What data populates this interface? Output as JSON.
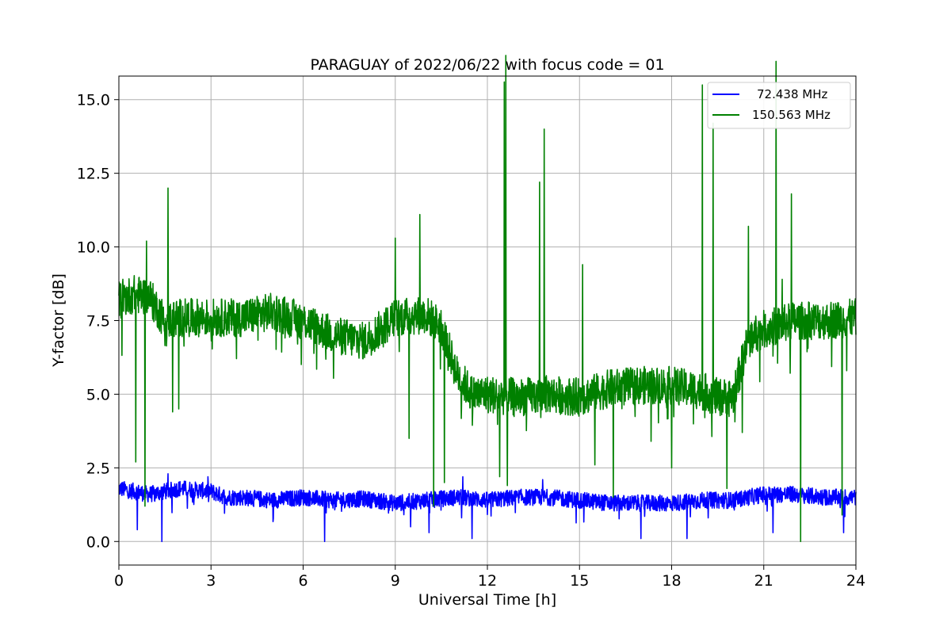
{
  "chart_data": {
    "type": "line",
    "title": "PARAGUAY of 2022/06/22 with focus code = 01",
    "xlabel": "Universal Time [h]",
    "ylabel": "Y-factor [dB]",
    "xlim": [
      0,
      24
    ],
    "ylim": [
      -0.8,
      15.8
    ],
    "x_ticks": [
      0,
      3,
      6,
      9,
      12,
      15,
      18,
      21,
      24
    ],
    "x_tick_labels": [
      "0",
      "3",
      "6",
      "9",
      "12",
      "15",
      "18",
      "21",
      "24"
    ],
    "y_ticks": [
      0.0,
      2.5,
      5.0,
      7.5,
      10.0,
      12.5,
      15.0
    ],
    "y_tick_labels": [
      "0.0",
      "2.5",
      "5.0",
      "7.5",
      "10.0",
      "12.5",
      "15.0"
    ],
    "grid": true,
    "legend_position": "top-right",
    "series": [
      {
        "name": "72.438 MHz",
        "color": "#0000ff",
        "x": [
          0,
          0.5,
          1.0,
          1.5,
          2.0,
          2.5,
          3.0,
          3.5,
          4.0,
          5.0,
          6.0,
          7.0,
          8.0,
          9.0,
          10.0,
          11.0,
          12.0,
          13.0,
          14.0,
          15.0,
          16.0,
          17.0,
          18.0,
          19.0,
          20.0,
          21.0,
          22.0,
          23.0,
          24.0
        ],
        "y": [
          1.8,
          1.7,
          1.6,
          1.7,
          1.8,
          1.75,
          1.7,
          1.5,
          1.5,
          1.4,
          1.5,
          1.4,
          1.45,
          1.3,
          1.4,
          1.5,
          1.4,
          1.5,
          1.5,
          1.4,
          1.3,
          1.3,
          1.3,
          1.4,
          1.4,
          1.6,
          1.6,
          1.5,
          1.5
        ],
        "spikes": [
          {
            "x": 0.6,
            "y": 0.4
          },
          {
            "x": 1.4,
            "y": 0.0
          },
          {
            "x": 1.6,
            "y": 2.3
          },
          {
            "x": 2.9,
            "y": 2.2
          },
          {
            "x": 6.7,
            "y": 0.0
          },
          {
            "x": 9.5,
            "y": 0.5
          },
          {
            "x": 10.1,
            "y": 0.3
          },
          {
            "x": 11.2,
            "y": 2.2
          },
          {
            "x": 11.5,
            "y": 0.1
          },
          {
            "x": 13.8,
            "y": 2.1
          },
          {
            "x": 17.0,
            "y": 0.1
          },
          {
            "x": 18.5,
            "y": 0.1
          },
          {
            "x": 21.3,
            "y": 0.3
          },
          {
            "x": 23.6,
            "y": 0.3
          }
        ]
      },
      {
        "name": "150.563 MHz",
        "color": "#008000",
        "x": [
          0,
          0.5,
          1.0,
          1.5,
          2.0,
          3.0,
          4.0,
          5.0,
          6.0,
          7.0,
          8.0,
          9.0,
          10.0,
          10.5,
          11.0,
          11.5,
          12.0,
          13.0,
          14.0,
          15.0,
          16.0,
          17.0,
          18.0,
          19.0,
          19.5,
          20.0,
          20.5,
          21.0,
          22.0,
          23.0,
          24.0
        ],
        "y": [
          8.2,
          8.4,
          8.3,
          7.5,
          7.6,
          7.6,
          7.6,
          7.8,
          7.5,
          7.0,
          6.8,
          7.6,
          7.7,
          7.3,
          5.7,
          5.0,
          5.0,
          4.9,
          5.0,
          4.9,
          5.2,
          5.3,
          5.3,
          5.1,
          4.9,
          4.9,
          6.9,
          7.2,
          7.5,
          7.5,
          7.6
        ],
        "spikes": [
          {
            "x": 0.55,
            "y": 2.7
          },
          {
            "x": 0.85,
            "y": 1.2
          },
          {
            "x": 0.9,
            "y": 10.2
          },
          {
            "x": 1.6,
            "y": 12.0
          },
          {
            "x": 1.75,
            "y": 4.4
          },
          {
            "x": 1.95,
            "y": 4.5
          },
          {
            "x": 9.0,
            "y": 10.3
          },
          {
            "x": 9.45,
            "y": 3.5
          },
          {
            "x": 9.8,
            "y": 11.1
          },
          {
            "x": 10.25,
            "y": 1.2
          },
          {
            "x": 10.6,
            "y": 2.0
          },
          {
            "x": 12.4,
            "y": 2.2
          },
          {
            "x": 12.55,
            "y": 15.6
          },
          {
            "x": 12.6,
            "y": 16.5
          },
          {
            "x": 12.65,
            "y": 1.9
          },
          {
            "x": 13.7,
            "y": 12.2
          },
          {
            "x": 13.85,
            "y": 14.0
          },
          {
            "x": 15.1,
            "y": 9.4
          },
          {
            "x": 15.5,
            "y": 2.6
          },
          {
            "x": 16.1,
            "y": 1.5
          },
          {
            "x": 18.0,
            "y": 2.5
          },
          {
            "x": 19.0,
            "y": 15.5
          },
          {
            "x": 19.35,
            "y": 14.2
          },
          {
            "x": 19.8,
            "y": 1.8
          },
          {
            "x": 20.3,
            "y": 3.7
          },
          {
            "x": 20.5,
            "y": 10.7
          },
          {
            "x": 21.4,
            "y": 16.3
          },
          {
            "x": 21.6,
            "y": 8.9
          },
          {
            "x": 21.9,
            "y": 11.8
          },
          {
            "x": 22.2,
            "y": 0.0
          },
          {
            "x": 23.55,
            "y": 0.9
          },
          {
            "x": 23.7,
            "y": 5.8
          }
        ]
      }
    ]
  }
}
